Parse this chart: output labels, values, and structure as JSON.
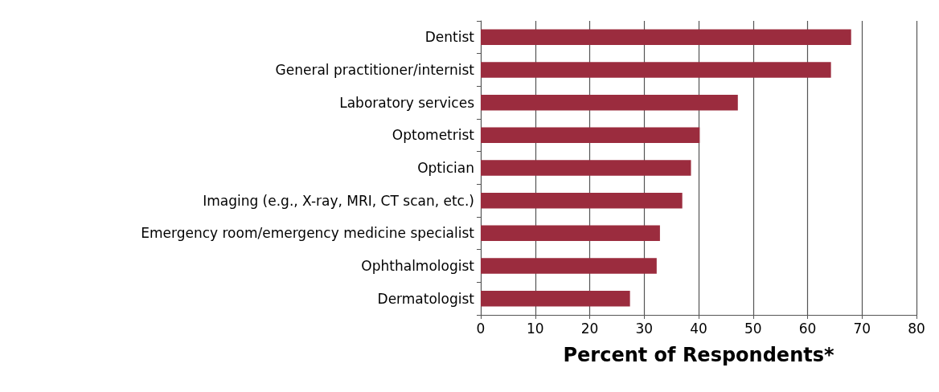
{
  "chart_data": {
    "type": "bar",
    "orientation": "horizontal",
    "xlabel": "Percent of Respondents*",
    "categories": [
      "Dentist",
      "General practitioner/internist",
      "Laboratory services",
      "Optometrist",
      "Optician",
      "Imaging (e.g., X-ray, MRI, CT scan, etc.)",
      "Emergency room/emergency medicine specialist",
      "Ophthalmologist",
      "Dermatologist"
    ],
    "values": [
      68,
      64.3,
      47.2,
      40.2,
      38.6,
      37,
      32.9,
      32.3,
      27.4
    ],
    "color": "#9b2c3e",
    "xlim": [
      0,
      80
    ],
    "xticks": [
      0,
      10,
      20,
      30,
      40,
      50,
      60,
      70,
      80
    ],
    "grid": "x"
  }
}
